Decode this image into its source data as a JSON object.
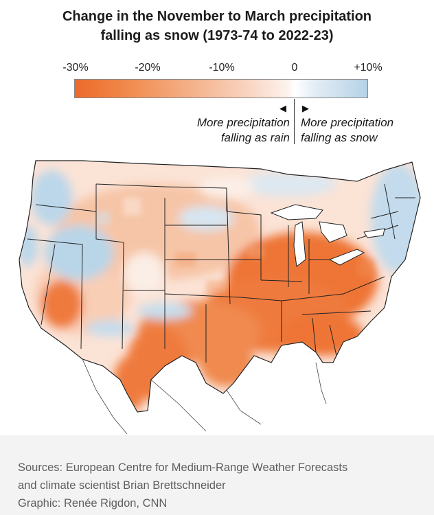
{
  "title": {
    "line1": "Change in the November to March precipitation",
    "line2": "falling as snow (1973-74 to 2022-23)"
  },
  "legend": {
    "ticks": [
      "-30%",
      "-20%",
      "-10%",
      "0",
      "+10%"
    ],
    "left_arrow": "◀",
    "right_arrow": "▶",
    "left_note": [
      "More precipitation",
      "falling as rain"
    ],
    "right_note": [
      "More precipitation",
      "falling as snow"
    ],
    "colors": {
      "strong_decrease": "#ec6a2a",
      "moderate_decrease": "#f4ae85",
      "neutral": "#ffffff",
      "increase": "#b5d2e6"
    }
  },
  "footer": {
    "line1": "Sources: European Centre for Medium-Range Weather Forecasts",
    "line2": "and climate scientist Brian Brettschneider",
    "line3": "Graphic: Renée Rigdon, CNN"
  }
}
